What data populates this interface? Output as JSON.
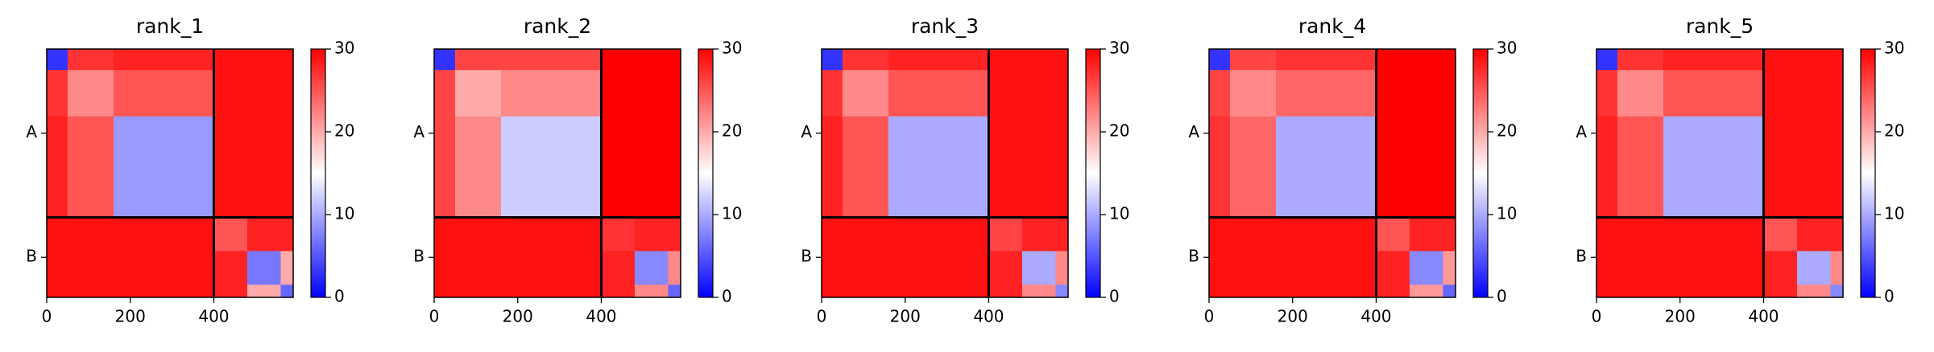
{
  "chart_data": [
    {
      "type": "heatmap",
      "title": "rank_1",
      "colormap": "bwr",
      "clim": [
        0,
        30
      ],
      "cticks": [
        0,
        10,
        20,
        30
      ],
      "xlim": [
        0,
        590
      ],
      "ylim": [
        0,
        590
      ],
      "y_inverted": true,
      "xticks": [
        0,
        200,
        400
      ],
      "yticks": [
        {
          "value": 200,
          "label": "A"
        },
        {
          "value": 495,
          "label": "B"
        }
      ],
      "chain_boundaries": [
        400
      ],
      "x_edges": [
        0,
        50,
        160,
        400,
        480,
        560,
        590
      ],
      "values": [
        [
          3,
          27,
          28,
          29,
          29,
          29
        ],
        [
          27,
          22,
          25,
          29,
          29,
          29
        ],
        [
          28,
          25,
          9,
          29,
          29,
          29
        ],
        [
          29,
          29,
          29,
          25,
          28,
          28
        ],
        [
          29,
          29,
          29,
          28,
          7,
          20
        ],
        [
          29,
          29,
          29,
          28,
          20,
          6
        ]
      ]
    },
    {
      "type": "heatmap",
      "title": "rank_2",
      "colormap": "bwr",
      "clim": [
        0,
        30
      ],
      "cticks": [
        0,
        10,
        20,
        30
      ],
      "xlim": [
        0,
        590
      ],
      "ylim": [
        0,
        590
      ],
      "y_inverted": true,
      "xticks": [
        0,
        200,
        400
      ],
      "yticks": [
        {
          "value": 200,
          "label": "A"
        },
        {
          "value": 495,
          "label": "B"
        }
      ],
      "chain_boundaries": [
        400
      ],
      "x_edges": [
        0,
        50,
        160,
        400,
        480,
        560,
        590
      ],
      "values": [
        [
          3,
          26,
          26,
          30,
          30,
          30
        ],
        [
          26,
          20,
          22,
          30,
          30,
          30
        ],
        [
          26,
          22,
          12,
          30,
          30,
          30
        ],
        [
          29,
          29,
          29,
          27,
          28,
          28
        ],
        [
          29,
          29,
          29,
          28,
          8,
          22
        ],
        [
          29,
          29,
          29,
          28,
          22,
          6
        ]
      ]
    },
    {
      "type": "heatmap",
      "title": "rank_3",
      "colormap": "bwr",
      "clim": [
        0,
        30
      ],
      "cticks": [
        0,
        10,
        20,
        30
      ],
      "xlim": [
        0,
        590
      ],
      "ylim": [
        0,
        590
      ],
      "y_inverted": true,
      "xticks": [
        0,
        200,
        400
      ],
      "yticks": [
        {
          "value": 200,
          "label": "A"
        },
        {
          "value": 495,
          "label": "B"
        }
      ],
      "chain_boundaries": [
        400
      ],
      "x_edges": [
        0,
        50,
        160,
        400,
        480,
        560,
        590
      ],
      "values": [
        [
          3,
          27,
          28,
          29,
          29,
          29
        ],
        [
          27,
          22,
          25,
          29,
          29,
          29
        ],
        [
          28,
          25,
          10,
          29,
          29,
          29
        ],
        [
          29,
          29,
          29,
          26,
          28,
          28
        ],
        [
          29,
          29,
          29,
          28,
          10,
          22
        ],
        [
          29,
          29,
          29,
          28,
          22,
          8
        ]
      ]
    },
    {
      "type": "heatmap",
      "title": "rank_4",
      "colormap": "bwr",
      "clim": [
        0,
        30
      ],
      "cticks": [
        0,
        10,
        20,
        30
      ],
      "xlim": [
        0,
        590
      ],
      "ylim": [
        0,
        590
      ],
      "y_inverted": true,
      "xticks": [
        0,
        200,
        400
      ],
      "yticks": [
        {
          "value": 200,
          "label": "A"
        },
        {
          "value": 495,
          "label": "B"
        }
      ],
      "chain_boundaries": [
        400
      ],
      "x_edges": [
        0,
        50,
        160,
        400,
        480,
        560,
        590
      ],
      "values": [
        [
          3,
          26,
          27,
          30,
          30,
          30
        ],
        [
          26,
          22,
          24,
          30,
          30,
          30
        ],
        [
          27,
          24,
          10,
          30,
          30,
          30
        ],
        [
          29,
          29,
          29,
          25,
          28,
          28
        ],
        [
          29,
          29,
          29,
          28,
          8,
          21
        ],
        [
          29,
          29,
          29,
          28,
          21,
          6
        ]
      ]
    },
    {
      "type": "heatmap",
      "title": "rank_5",
      "colormap": "bwr",
      "clim": [
        0,
        30
      ],
      "cticks": [
        0,
        10,
        20,
        30
      ],
      "xlim": [
        0,
        590
      ],
      "ylim": [
        0,
        590
      ],
      "y_inverted": true,
      "xticks": [
        0,
        200,
        400
      ],
      "yticks": [
        {
          "value": 200,
          "label": "A"
        },
        {
          "value": 495,
          "label": "B"
        }
      ],
      "chain_boundaries": [
        400
      ],
      "x_edges": [
        0,
        50,
        160,
        400,
        480,
        560,
        590
      ],
      "values": [
        [
          3,
          27,
          28,
          29,
          29,
          29
        ],
        [
          27,
          22,
          25,
          29,
          29,
          29
        ],
        [
          28,
          25,
          10,
          29,
          29,
          29
        ],
        [
          29,
          29,
          29,
          25,
          28,
          28
        ],
        [
          29,
          29,
          29,
          28,
          10,
          22
        ],
        [
          29,
          29,
          29,
          28,
          22,
          8
        ]
      ]
    }
  ]
}
